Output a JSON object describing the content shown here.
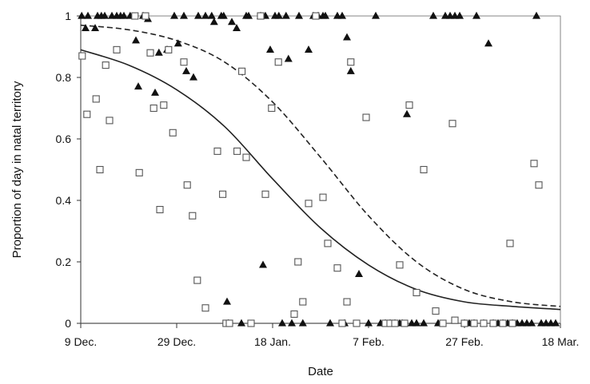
{
  "chart_data": {
    "type": "scatter",
    "xlabel": "Date",
    "ylabel": "Proportion of day in natal territory",
    "x_tick_labels": [
      "9 Dec.",
      "29 Dec.",
      "18 Jan.",
      "7 Feb.",
      "27 Feb.",
      "18 Mar."
    ],
    "x_ticks_days": [
      0,
      20,
      40,
      60,
      80,
      100
    ],
    "xlim_days": [
      0,
      100
    ],
    "y_ticks": [
      0,
      0.2,
      0.4,
      0.6,
      0.8,
      1
    ],
    "y_tick_labels": [
      "0",
      "0.2",
      "0.4",
      "0.6",
      "0.8",
      "1"
    ],
    "ylim": [
      0,
      1
    ],
    "grid": false,
    "series": [
      {
        "marker": "triangle",
        "color": "#111111",
        "points": [
          [
            0.2,
            1
          ],
          [
            1,
            0.96
          ],
          [
            1.5,
            1
          ],
          [
            3,
            0.96
          ],
          [
            3.5,
            1
          ],
          [
            4.3,
            1
          ],
          [
            5,
            1
          ],
          [
            6.5,
            1
          ],
          [
            7.5,
            1
          ],
          [
            8.3,
            1
          ],
          [
            9,
            1
          ],
          [
            10.3,
            1
          ],
          [
            11.5,
            0.92
          ],
          [
            12,
            0.77
          ],
          [
            13,
            1
          ],
          [
            14,
            0.99
          ],
          [
            15.5,
            0.75
          ],
          [
            16.3,
            0.88
          ],
          [
            18,
            0.89
          ],
          [
            19.5,
            1
          ],
          [
            20.3,
            0.91
          ],
          [
            21.5,
            1
          ],
          [
            22,
            0.82
          ],
          [
            23.5,
            0.8
          ],
          [
            24.5,
            1
          ],
          [
            26,
            1
          ],
          [
            27.3,
            1
          ],
          [
            27.8,
            0.98
          ],
          [
            29.3,
            1
          ],
          [
            29.8,
            1
          ],
          [
            30.5,
            0.07
          ],
          [
            30.8,
            0
          ],
          [
            31.5,
            0.98
          ],
          [
            32.5,
            0.96
          ],
          [
            33.5,
            0
          ],
          [
            34.5,
            1
          ],
          [
            35,
            1
          ],
          [
            37.5,
            1
          ],
          [
            38,
            0.19
          ],
          [
            38.5,
            1
          ],
          [
            39.5,
            0.89
          ],
          [
            40.5,
            1
          ],
          [
            41.3,
            1
          ],
          [
            42,
            0
          ],
          [
            42.8,
            1
          ],
          [
            43.3,
            0.86
          ],
          [
            44,
            0
          ],
          [
            45.5,
            1
          ],
          [
            46.3,
            0
          ],
          [
            47.5,
            0.89
          ],
          [
            48.5,
            1
          ],
          [
            49.5,
            1
          ],
          [
            50.5,
            1
          ],
          [
            51,
            1
          ],
          [
            52,
            0
          ],
          [
            53.5,
            1
          ],
          [
            54.5,
            1
          ],
          [
            55,
            0
          ],
          [
            55.5,
            0.93
          ],
          [
            56.3,
            0.82
          ],
          [
            58,
            0.16
          ],
          [
            60,
            0
          ],
          [
            61.5,
            1
          ],
          [
            62.5,
            0
          ],
          [
            63.5,
            0
          ],
          [
            64.5,
            0
          ],
          [
            65.5,
            0
          ],
          [
            66.5,
            0
          ],
          [
            67,
            0
          ],
          [
            68,
            0.68
          ],
          [
            69,
            0
          ],
          [
            70,
            0
          ],
          [
            71.5,
            0
          ],
          [
            73.5,
            1
          ],
          [
            74.5,
            0
          ],
          [
            76,
            1
          ],
          [
            77,
            1
          ],
          [
            78,
            1
          ],
          [
            79,
            1
          ],
          [
            80,
            0
          ],
          [
            81,
            0
          ],
          [
            82,
            0
          ],
          [
            82.5,
            1
          ],
          [
            84,
            0
          ],
          [
            85,
            0.91
          ],
          [
            86,
            0
          ],
          [
            87,
            0
          ],
          [
            88,
            0
          ],
          [
            89,
            0
          ],
          [
            90,
            0
          ],
          [
            91,
            0
          ],
          [
            92,
            0
          ],
          [
            93,
            0
          ],
          [
            94,
            0
          ],
          [
            95,
            1
          ],
          [
            96,
            0
          ],
          [
            97,
            0
          ],
          [
            98,
            0
          ],
          [
            99,
            0
          ]
        ]
      },
      {
        "marker": "open-square",
        "color": "#555555",
        "points": [
          [
            0.3,
            0.87
          ],
          [
            1.3,
            0.68
          ],
          [
            3.2,
            0.73
          ],
          [
            4,
            0.5
          ],
          [
            5.2,
            0.84
          ],
          [
            6,
            0.66
          ],
          [
            7.5,
            0.89
          ],
          [
            11.3,
            1
          ],
          [
            12.2,
            0.49
          ],
          [
            13.5,
            1
          ],
          [
            14.5,
            0.88
          ],
          [
            15.2,
            0.7
          ],
          [
            16.5,
            0.37
          ],
          [
            17.3,
            0.71
          ],
          [
            18.3,
            0.89
          ],
          [
            19.2,
            0.62
          ],
          [
            21.5,
            0.85
          ],
          [
            22.2,
            0.45
          ],
          [
            23.3,
            0.35
          ],
          [
            24.3,
            0.14
          ],
          [
            26,
            0.05
          ],
          [
            28.5,
            0.56
          ],
          [
            29.6,
            0.42
          ],
          [
            30.3,
            0
          ],
          [
            31,
            0
          ],
          [
            32.6,
            0.56
          ],
          [
            33.6,
            0.82
          ],
          [
            34.5,
            0.54
          ],
          [
            35.5,
            0
          ],
          [
            37.5,
            1
          ],
          [
            38.5,
            0.42
          ],
          [
            39.8,
            0.7
          ],
          [
            41.2,
            0.85
          ],
          [
            44.5,
            0.03
          ],
          [
            45.3,
            0.2
          ],
          [
            46.3,
            0.07
          ],
          [
            47.5,
            0.39
          ],
          [
            49,
            1
          ],
          [
            50.5,
            0.41
          ],
          [
            51.5,
            0.26
          ],
          [
            53.5,
            0.18
          ],
          [
            54.5,
            0
          ],
          [
            55.5,
            0.07
          ],
          [
            56.3,
            0.85
          ],
          [
            57.5,
            0
          ],
          [
            59.5,
            0.67
          ],
          [
            63.5,
            0
          ],
          [
            64.5,
            0
          ],
          [
            65.5,
            0
          ],
          [
            66.5,
            0.19
          ],
          [
            67.5,
            0
          ],
          [
            68.5,
            0.71
          ],
          [
            70,
            0.1
          ],
          [
            71.5,
            0.5
          ],
          [
            74,
            0.04
          ],
          [
            75.5,
            0
          ],
          [
            77.5,
            0.65
          ],
          [
            78,
            0.01
          ],
          [
            80,
            0
          ],
          [
            82,
            0
          ],
          [
            84,
            0
          ],
          [
            86,
            0
          ],
          [
            88,
            0
          ],
          [
            90,
            0
          ],
          [
            89.5,
            0.26
          ],
          [
            94.5,
            0.52
          ],
          [
            95.5,
            0.45
          ]
        ]
      }
    ],
    "curves": [
      {
        "style": "solid",
        "color": "#222222",
        "points": [
          [
            0,
            0.89
          ],
          [
            10,
            0.84
          ],
          [
            20,
            0.76
          ],
          [
            30,
            0.64
          ],
          [
            40,
            0.47
          ],
          [
            50,
            0.31
          ],
          [
            60,
            0.19
          ],
          [
            70,
            0.11
          ],
          [
            80,
            0.07
          ],
          [
            90,
            0.055
          ],
          [
            100,
            0.045
          ]
        ]
      },
      {
        "style": "dashed",
        "color": "#222222",
        "points": [
          [
            0,
            0.97
          ],
          [
            10,
            0.955
          ],
          [
            20,
            0.92
          ],
          [
            30,
            0.85
          ],
          [
            40,
            0.72
          ],
          [
            50,
            0.54
          ],
          [
            60,
            0.35
          ],
          [
            70,
            0.2
          ],
          [
            80,
            0.11
          ],
          [
            90,
            0.07
          ],
          [
            100,
            0.055
          ]
        ]
      }
    ]
  }
}
